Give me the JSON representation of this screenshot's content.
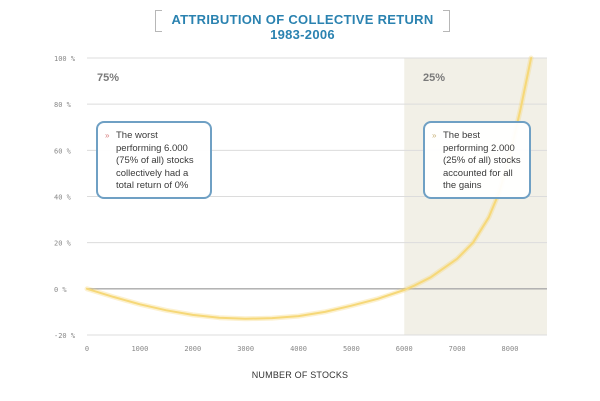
{
  "chart_data": {
    "type": "area",
    "title": "ATTRIBUTION OF COLLECTIVE RETURN 1983-2006",
    "xlabel": "NUMBER OF STOCKS",
    "ylabel": "",
    "xlim": [
      0,
      8700
    ],
    "ylim": [
      -20,
      100
    ],
    "x_ticks": [
      0,
      1000,
      2000,
      3000,
      4000,
      5000,
      6000,
      7000,
      8000
    ],
    "y_ticks": [
      -20,
      0,
      20,
      40,
      60,
      80,
      100
    ],
    "y_tick_labels": [
      "-20 %",
      "0 %",
      "20 %",
      "40 %",
      "60 %",
      "80 %",
      "100 %"
    ],
    "grid": true,
    "series": [
      {
        "color": "#f6d878",
        "x": [
          0,
          500,
          1000,
          1500,
          2000,
          2500,
          3000,
          3500,
          4000,
          4500,
          5000,
          5500,
          6000,
          6200,
          6500,
          7000,
          7300,
          7600,
          7800,
          8000,
          8200,
          8400
        ],
        "y": [
          0,
          -3.5,
          -6.7,
          -9.3,
          -11.3,
          -12.5,
          -13,
          -12.7,
          -11.8,
          -10,
          -7.3,
          -4.3,
          -0.5,
          1.5,
          5,
          13,
          20,
          31,
          42,
          58,
          78,
          100
        ]
      }
    ],
    "regions": [
      {
        "label": "75%",
        "from": 0,
        "to": 6000
      },
      {
        "label": "25%",
        "from": 6000,
        "to": 8700
      }
    ],
    "annotations": [
      {
        "text": "The worst performing 6.000 (75% of all) stocks collectively had a total return of 0%"
      },
      {
        "text": "The best performing 2.000 (25% of all) stocks accounted for all the gains"
      }
    ]
  },
  "colors": {
    "title": "#2a82b0",
    "shaded_region": "#f2f0e7",
    "gridline": "#dcdcdc",
    "zero_line": "#aaaaaa",
    "curve": "#f6d878",
    "callout_border": "#6fa0c4",
    "worst_marker": "#d88080",
    "best_marker": "#c9b27a"
  },
  "marker_glyph": "»"
}
